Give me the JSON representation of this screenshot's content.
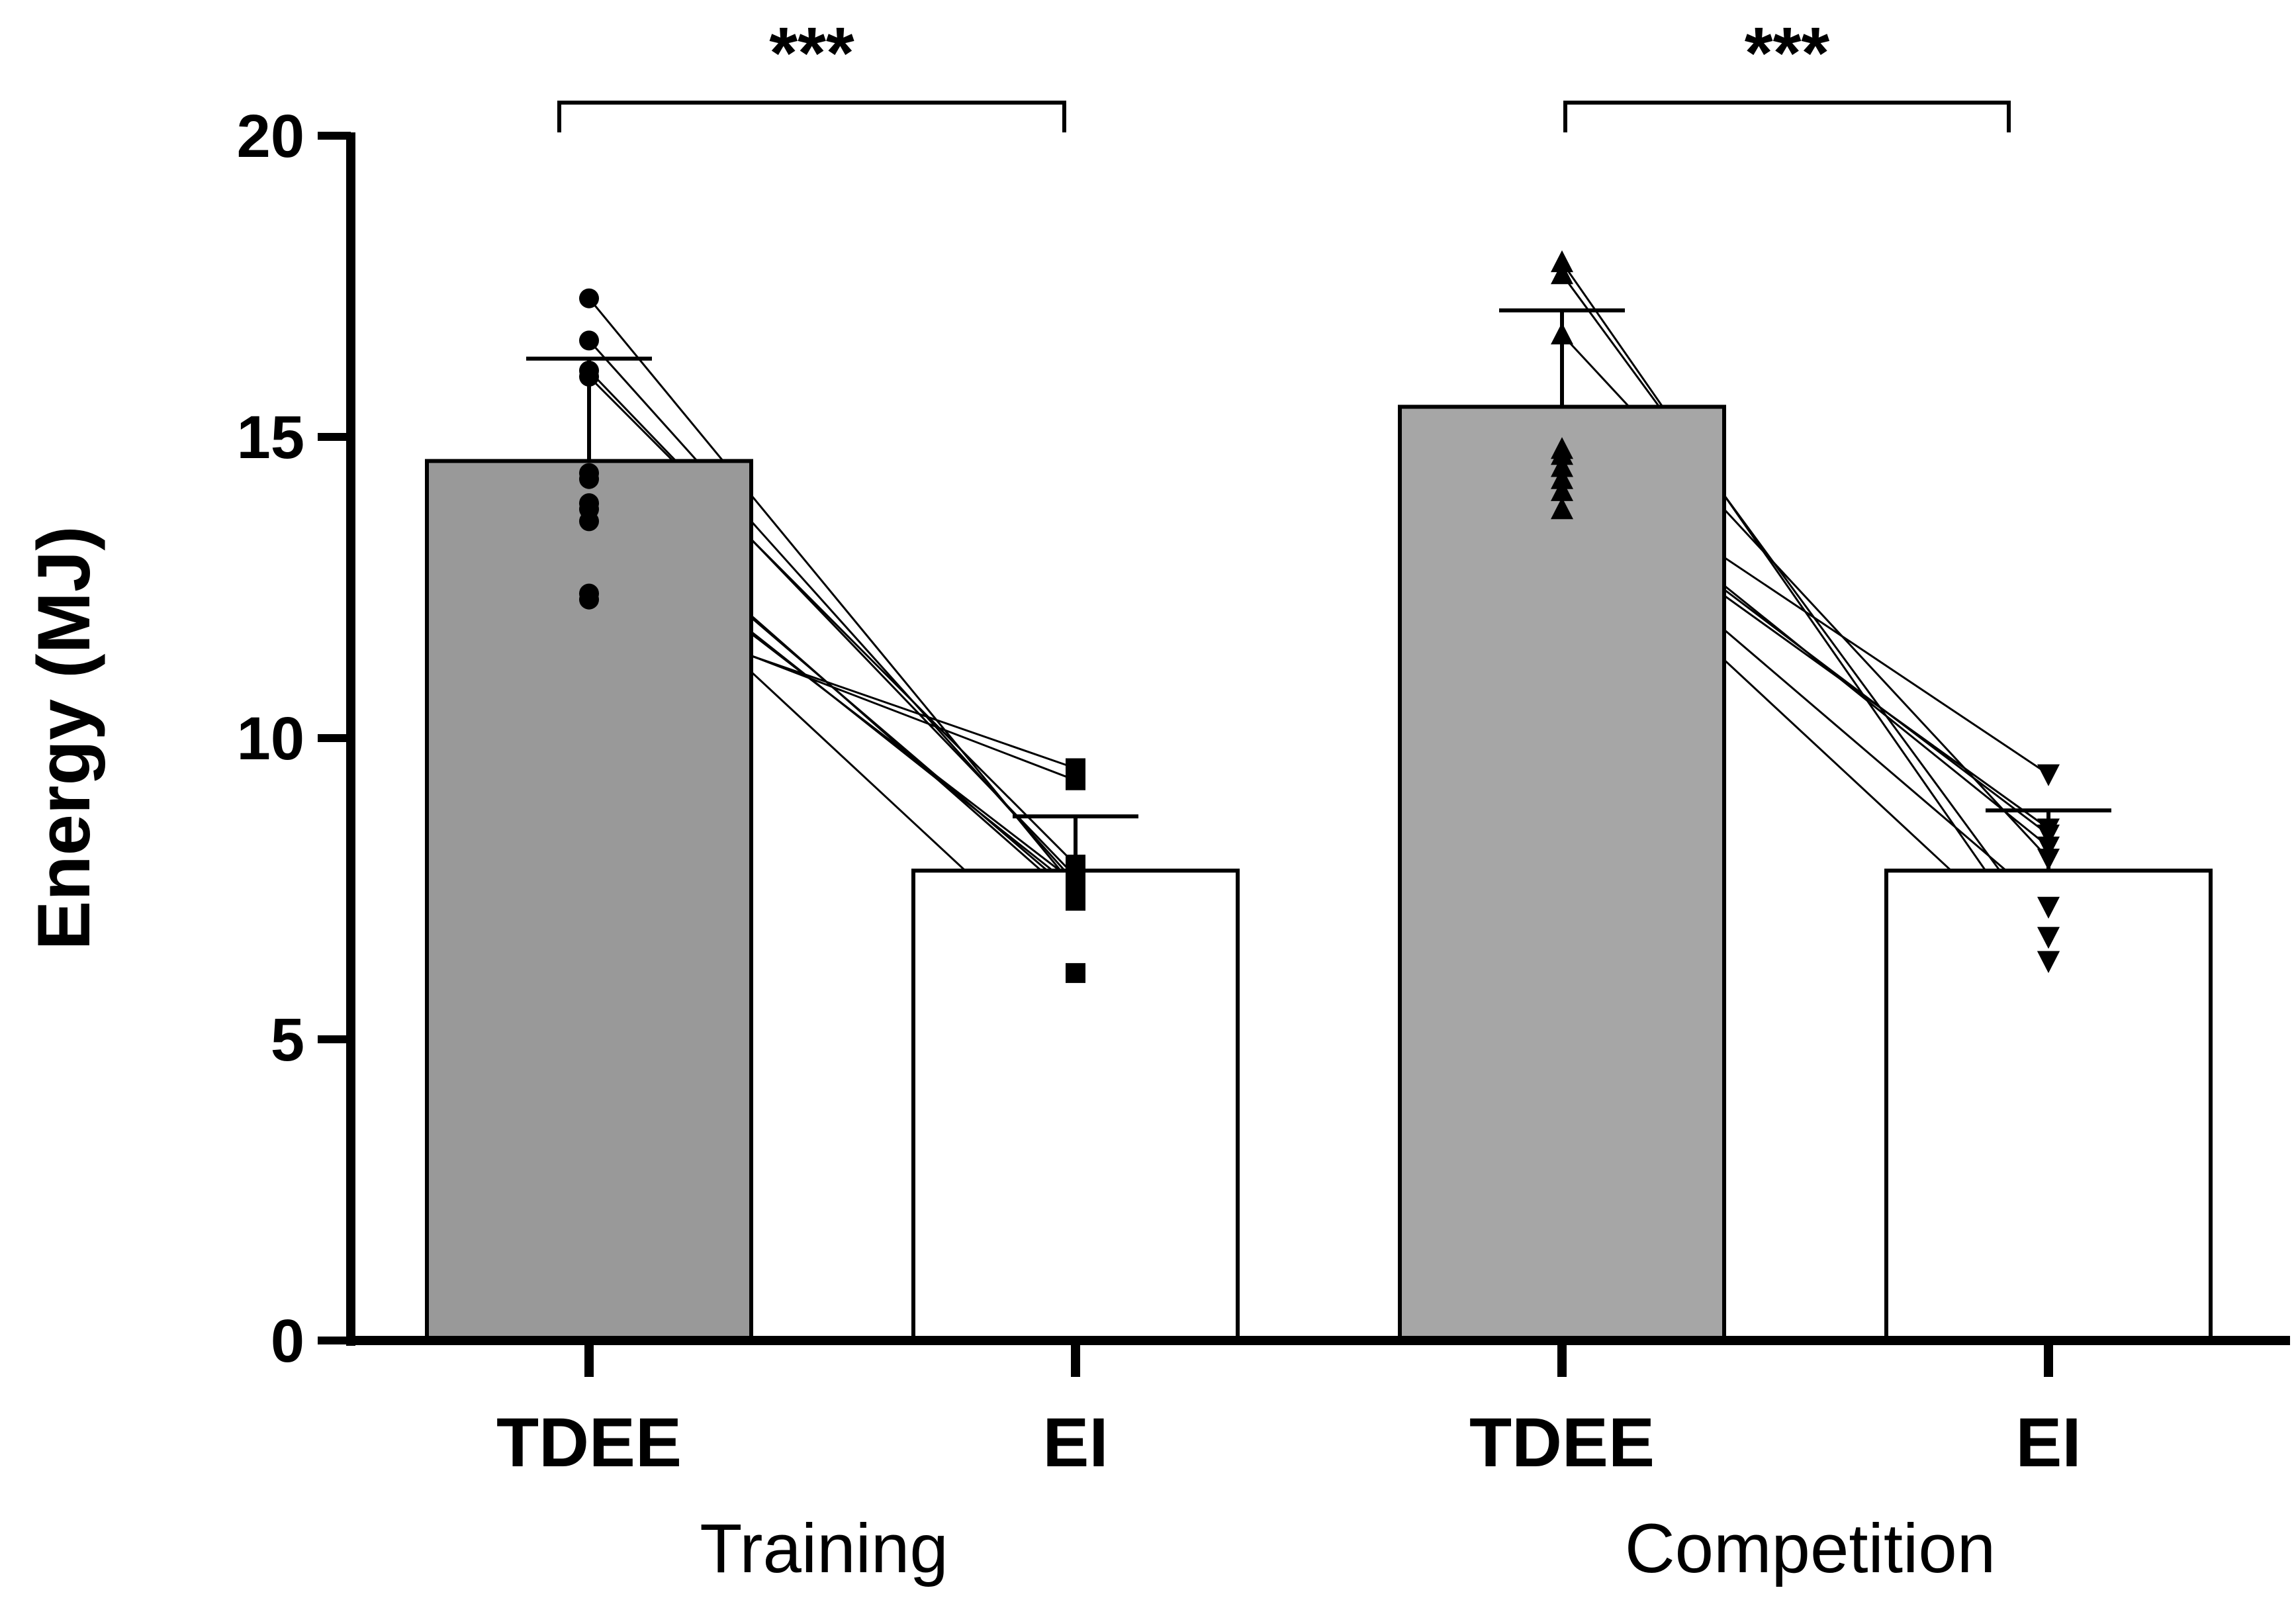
{
  "chart_data": {
    "type": "bar",
    "title": "",
    "xlabel": "",
    "ylabel": "Energy (MJ)",
    "ylim": [
      0,
      20
    ],
    "yticks": [
      0,
      5,
      10,
      15,
      20
    ],
    "ytick_labels": [
      "0",
      "5",
      "10",
      "15",
      "20"
    ],
    "categories": [
      "TDEE",
      "EI",
      "TDEE",
      "EI"
    ],
    "groups": [
      "Training",
      "Competition"
    ],
    "bars": [
      {
        "group": "Training",
        "label": "TDEE",
        "value": 14.6,
        "error": 1.7,
        "color": "#999999"
      },
      {
        "group": "Training",
        "label": "EI",
        "value": 7.8,
        "error": 0.9,
        "color": "#ffffff"
      },
      {
        "group": "Competition",
        "label": "TDEE",
        "value": 15.5,
        "error": 1.6,
        "color": "#a6a6a6"
      },
      {
        "group": "Competition",
        "label": "EI",
        "value": 7.8,
        "error": 1.0,
        "color": "#ffffff"
      }
    ],
    "paired_points": [
      {
        "group": "Training",
        "marker_first": "circle",
        "marker_second": "square",
        "pairs": [
          [
            17.3,
            7.5
          ],
          [
            16.6,
            7.6
          ],
          [
            16.1,
            7.7
          ],
          [
            16.0,
            7.9
          ],
          [
            14.4,
            7.3
          ],
          [
            14.3,
            7.4
          ],
          [
            13.9,
            7.5
          ],
          [
            13.8,
            7.6
          ],
          [
            13.6,
            6.1
          ],
          [
            12.4,
            9.3
          ],
          [
            12.3,
            9.5
          ]
        ]
      },
      {
        "group": "Competition",
        "marker_first": "triangle-up",
        "marker_second": "triangle-down",
        "pairs": [
          [
            17.9,
            6.3
          ],
          [
            17.7,
            6.7
          ],
          [
            16.7,
            8.0
          ],
          [
            14.8,
            9.4
          ],
          [
            14.7,
            8.2
          ],
          [
            14.5,
            8.4
          ],
          [
            14.3,
            8.5
          ],
          [
            14.1,
            7.2
          ],
          [
            13.8,
            6.3
          ]
        ]
      }
    ],
    "significance": [
      {
        "group": "Training",
        "label": "***"
      },
      {
        "group": "Competition",
        "label": "***"
      }
    ],
    "grid": false,
    "legend": "none"
  }
}
